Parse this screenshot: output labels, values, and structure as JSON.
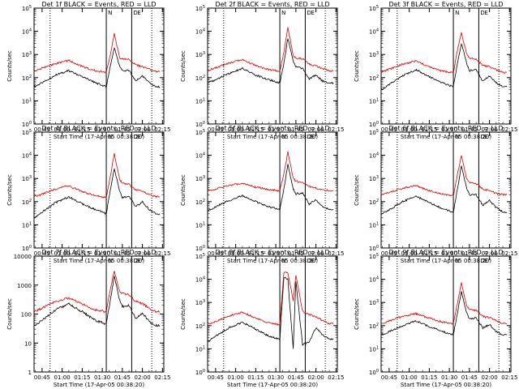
{
  "colors": {
    "events": "#000000",
    "lld": "#e00000",
    "axis": "#000000"
  },
  "common": {
    "ylabel": "Counts/sec",
    "xlabel": "Start Time (17-Apr-05 00:38:20)",
    "xticks": [
      "00:45",
      "01:00",
      "01:15",
      "01:30",
      "01:45",
      "02:00",
      "02:15"
    ],
    "y_scale": "log",
    "marker_labels": [
      "N",
      "D",
      "E"
    ]
  },
  "chart_data": [
    {
      "type": "line",
      "title": "Det 1f BLACK = Events, RED = LLD",
      "ylim": [
        1,
        100000
      ],
      "yticklabels": [
        "10^0",
        "10^1",
        "10^2",
        "10^3",
        "10^4",
        "10^5"
      ],
      "x": [
        "00:39",
        "00:45",
        "00:55",
        "01:05",
        "01:15",
        "01:25",
        "01:33",
        "01:36",
        "01:39",
        "01:43",
        "01:45",
        "01:50",
        "01:55",
        "02:00",
        "02:05",
        "02:10",
        "02:13"
      ],
      "series": [
        {
          "name": "BLACK = Events",
          "values": [
            40,
            60,
            130,
            200,
            110,
            60,
            40,
            300,
            2000,
            300,
            200,
            200,
            70,
            120,
            60,
            40,
            40
          ]
        },
        {
          "name": "RED = LLD",
          "values": [
            180,
            260,
            400,
            550,
            300,
            200,
            170,
            900,
            8000,
            700,
            650,
            600,
            350,
            300,
            230,
            180,
            180
          ]
        }
      ]
    },
    {
      "type": "line",
      "title": "Det 2f BLACK = Events, RED = LLD",
      "ylim": [
        1,
        100000
      ],
      "yticklabels": [
        "10^0",
        "10^1",
        "10^2",
        "10^3",
        "10^4",
        "10^5"
      ],
      "x": [
        "00:39",
        "00:45",
        "00:55",
        "01:05",
        "01:15",
        "01:25",
        "01:33",
        "01:36",
        "01:39",
        "01:43",
        "01:45",
        "01:50",
        "01:55",
        "02:00",
        "02:05",
        "02:10",
        "02:13"
      ],
      "series": [
        {
          "name": "BLACK = Events",
          "values": [
            60,
            80,
            150,
            250,
            130,
            80,
            60,
            400,
            5000,
            500,
            300,
            250,
            90,
            130,
            70,
            60,
            60
          ]
        },
        {
          "name": "RED = LLD",
          "values": [
            200,
            270,
            420,
            600,
            330,
            220,
            190,
            1200,
            15000,
            900,
            700,
            650,
            380,
            320,
            250,
            200,
            200
          ]
        }
      ]
    },
    {
      "type": "line",
      "title": "Det 3f BLACK = Events, RED = LLD",
      "ylim": [
        1,
        100000
      ],
      "yticklabels": [
        "10^0",
        "10^1",
        "10^2",
        "10^3",
        "10^4",
        "10^5"
      ],
      "x": [
        "00:39",
        "00:45",
        "00:55",
        "01:05",
        "01:15",
        "01:25",
        "01:33",
        "01:36",
        "01:39",
        "01:43",
        "01:45",
        "01:50",
        "01:55",
        "02:00",
        "02:05",
        "02:10",
        "02:13"
      ],
      "series": [
        {
          "name": "BLACK = Events",
          "values": [
            30,
            50,
            120,
            220,
            110,
            60,
            40,
            400,
            3000,
            400,
            200,
            220,
            70,
            120,
            60,
            40,
            40
          ]
        },
        {
          "name": "RED = LLD",
          "values": [
            170,
            230,
            380,
            520,
            290,
            190,
            160,
            1500,
            9000,
            1000,
            700,
            600,
            340,
            300,
            220,
            170,
            170
          ]
        }
      ]
    },
    {
      "type": "line",
      "title": "Det 4f BLACK = Events, RED = LLD",
      "ylim": [
        1,
        100000
      ],
      "yticklabels": [
        "10^0",
        "10^1",
        "10^2",
        "10^3",
        "10^4",
        "10^5"
      ],
      "x": [
        "00:39",
        "00:45",
        "00:55",
        "01:05",
        "01:15",
        "01:25",
        "01:33",
        "01:36",
        "01:39",
        "01:43",
        "01:45",
        "01:50",
        "01:55",
        "02:00",
        "02:05",
        "02:10",
        "02:13"
      ],
      "series": [
        {
          "name": "BLACK = Events",
          "values": [
            20,
            35,
            90,
            160,
            80,
            45,
            30,
            300,
            2500,
            300,
            150,
            170,
            60,
            100,
            45,
            30,
            30
          ]
        },
        {
          "name": "RED = LLD",
          "values": [
            160,
            210,
            350,
            480,
            270,
            180,
            150,
            1200,
            12000,
            900,
            650,
            550,
            320,
            280,
            200,
            160,
            160
          ]
        }
      ]
    },
    {
      "type": "line",
      "title": "Det 5f BLACK = Events, RED = LLD",
      "ylim": [
        1,
        100000
      ],
      "yticklabels": [
        "10^0",
        "10^1",
        "10^2",
        "10^3",
        "10^4",
        "10^5"
      ],
      "x": [
        "00:39",
        "00:45",
        "00:55",
        "01:05",
        "01:15",
        "01:25",
        "01:33",
        "01:36",
        "01:39",
        "01:43",
        "01:45",
        "01:50",
        "01:55",
        "02:00",
        "02:05",
        "02:10",
        "02:13"
      ],
      "series": [
        {
          "name": "BLACK = Events",
          "values": [
            40,
            60,
            110,
            180,
            100,
            60,
            45,
            350,
            4000,
            350,
            220,
            230,
            80,
            120,
            60,
            45,
            45
          ]
        },
        {
          "name": "RED = LLD",
          "values": [
            300,
            350,
            500,
            600,
            420,
            330,
            300,
            1500,
            14000,
            1000,
            750,
            700,
            450,
            380,
            320,
            300,
            300
          ]
        }
      ]
    },
    {
      "type": "line",
      "title": "Det 6f BLACK = Events, RED = LLD",
      "ylim": [
        1,
        100000
      ],
      "yticklabels": [
        "10^0",
        "10^1",
        "10^2",
        "10^3",
        "10^4",
        "10^5"
      ],
      "x": [
        "00:39",
        "00:45",
        "00:55",
        "01:05",
        "01:15",
        "01:25",
        "01:33",
        "01:36",
        "01:39",
        "01:43",
        "01:45",
        "01:50",
        "01:55",
        "02:00",
        "02:05",
        "02:10",
        "02:13"
      ],
      "series": [
        {
          "name": "BLACK = Events",
          "values": [
            30,
            45,
            100,
            170,
            90,
            50,
            35,
            350,
            3500,
            350,
            200,
            200,
            70,
            110,
            55,
            35,
            35
          ]
        },
        {
          "name": "RED = LLD",
          "values": [
            200,
            250,
            380,
            500,
            300,
            210,
            180,
            1400,
            10000,
            900,
            700,
            600,
            350,
            300,
            230,
            200,
            200
          ]
        }
      ]
    },
    {
      "type": "line",
      "title": "Det 7f BLACK = Events, RED = LLD",
      "ylim": [
        1,
        10000
      ],
      "yticklabels": [
        "1",
        "10",
        "100",
        "1000",
        "10000"
      ],
      "x": [
        "00:39",
        "00:45",
        "00:55",
        "01:05",
        "01:15",
        "01:25",
        "01:33",
        "01:36",
        "01:39",
        "01:43",
        "01:45",
        "01:50",
        "01:55",
        "02:00",
        "02:05",
        "02:10",
        "02:13"
      ],
      "series": [
        {
          "name": "BLACK = Events",
          "values": [
            40,
            60,
            140,
            220,
            120,
            60,
            45,
            300,
            2000,
            300,
            180,
            200,
            70,
            110,
            55,
            40,
            40
          ]
        },
        {
          "name": "RED = LLD",
          "values": [
            120,
            160,
            270,
            360,
            220,
            140,
            120,
            700,
            3000,
            600,
            500,
            450,
            270,
            230,
            160,
            120,
            120
          ]
        }
      ]
    },
    {
      "type": "line",
      "title": "Det 8f BLACK = Events, RED = LLD",
      "ylim": [
        1,
        100000
      ],
      "yticklabels": [
        "10^0",
        "10^1",
        "10^2",
        "10^3",
        "10^4",
        "10^5"
      ],
      "x": [
        "00:39",
        "00:45",
        "00:55",
        "01:05",
        "01:15",
        "01:25",
        "01:33",
        "01:36",
        "01:39",
        "01:43",
        "01:45",
        "01:50",
        "01:55",
        "02:00",
        "02:05",
        "02:10",
        "02:13"
      ],
      "series": [
        {
          "name": "BLACK = Events",
          "values": [
            20,
            35,
            80,
            140,
            70,
            35,
            25,
            12000,
            10000,
            10,
            8000,
            15,
            20,
            80,
            40,
            25,
            25
          ]
        },
        {
          "name": "RED = LLD",
          "values": [
            120,
            150,
            260,
            380,
            210,
            130,
            110,
            18000,
            20000,
            1200,
            15000,
            400,
            300,
            250,
            160,
            120,
            120
          ]
        }
      ]
    },
    {
      "type": "line",
      "title": "Det 9f BLACK = Events, RED = LLD",
      "ylim": [
        1,
        100000
      ],
      "yticklabels": [
        "10^0",
        "10^1",
        "10^2",
        "10^3",
        "10^4",
        "10^5"
      ],
      "x": [
        "00:39",
        "00:45",
        "00:55",
        "01:05",
        "01:15",
        "01:25",
        "01:33",
        "01:36",
        "01:39",
        "01:43",
        "01:45",
        "01:50",
        "01:55",
        "02:00",
        "02:05",
        "02:10",
        "02:13"
      ],
      "series": [
        {
          "name": "BLACK = Events",
          "values": [
            40,
            55,
            100,
            160,
            90,
            55,
            40,
            350,
            3000,
            350,
            200,
            220,
            80,
            110,
            55,
            40,
            40
          ]
        },
        {
          "name": "RED = LLD",
          "values": [
            120,
            160,
            250,
            330,
            210,
            140,
            120,
            900,
            7000,
            700,
            500,
            450,
            250,
            220,
            160,
            120,
            120
          ]
        }
      ]
    }
  ]
}
